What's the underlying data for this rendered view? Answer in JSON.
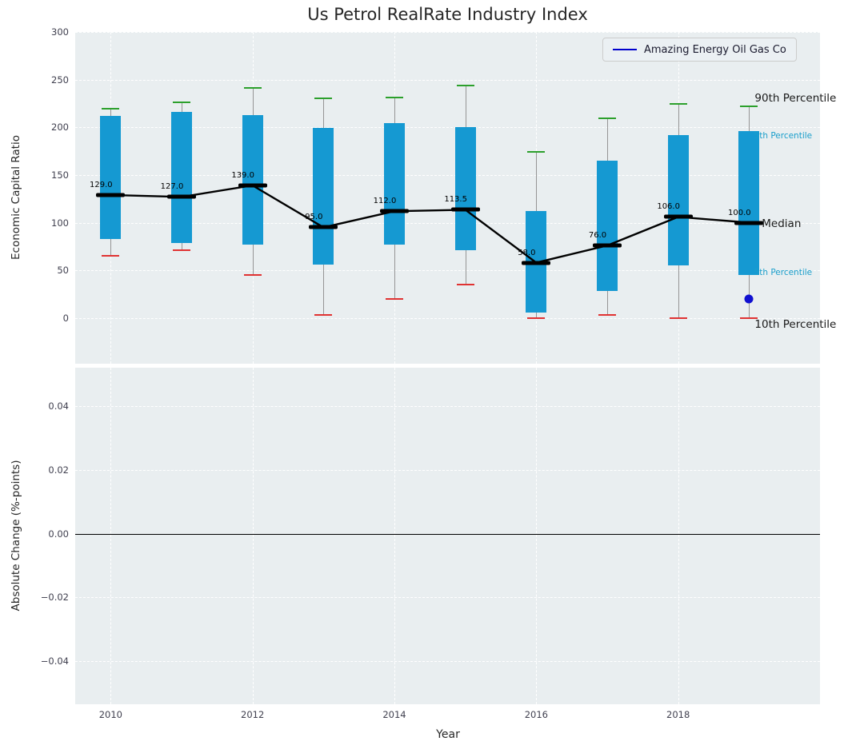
{
  "chart_data": [
    {
      "type": "boxplot",
      "title": "Us Petrol RealRate Industry Index",
      "xlabel": "Year",
      "ylabel": "Economic Capital Ratio",
      "x": [
        2010,
        2011,
        2012,
        2013,
        2014,
        2015,
        2016,
        2017,
        2018,
        2019
      ],
      "xlim": [
        2009.5,
        2020.0
      ],
      "ylim": [
        -48,
        300
      ],
      "yticks": [
        0,
        50,
        100,
        150,
        200,
        250,
        300
      ],
      "xticks": [
        2010,
        2012,
        2014,
        2016,
        2018
      ],
      "grid": true,
      "legend": {
        "position": "upper right",
        "entries": [
          {
            "label": "Amazing Energy Oil Gas Co",
            "color": "#0000cd"
          }
        ]
      },
      "series": {
        "median": [
          129.0,
          127.0,
          139.0,
          95.0,
          112.0,
          113.5,
          58.0,
          76.0,
          106.0,
          100.0
        ],
        "median_labels": [
          "129.0",
          "127.0",
          "139.0",
          "95.0",
          "112.0",
          "113.5",
          "58.0",
          "76.0",
          "106.0",
          "100.0"
        ],
        "q25": [
          83,
          79,
          77,
          56,
          77,
          71,
          6,
          28,
          55,
          45
        ],
        "q75": [
          212,
          216,
          213,
          199,
          204,
          200,
          112,
          165,
          192,
          196
        ],
        "p10": [
          66,
          72,
          46,
          4,
          21,
          36,
          1,
          4,
          1,
          1
        ],
        "p90": [
          220,
          227,
          242,
          231,
          232,
          245,
          175,
          210,
          225,
          223
        ]
      },
      "point": {
        "x": 2019,
        "y": 20,
        "color": "#0f0fd0",
        "label": "Amazing Energy Oil Gas Co"
      },
      "colors": {
        "box": "#1599d2",
        "cap_top": "#2ca02c",
        "cap_bottom": "#e03232",
        "whisker": "#959595",
        "median": "#000000"
      },
      "annotations": [
        {
          "text": "90th Percentile",
          "x": 2019.08,
          "value": 230,
          "color": "#1a1a1a",
          "size": 13.5
        },
        {
          "text": "5th Percentile",
          "x": 2019.07,
          "value": 191,
          "color": "#1a9ecb",
          "size": 10.5
        },
        {
          "text": "Median",
          "x": 2019.18,
          "value": 99,
          "color": "#1a1a1a",
          "size": 13.5
        },
        {
          "text": "5th Percentile",
          "x": 2019.07,
          "value": 48,
          "color": "#1a9ecb",
          "size": 10.5
        },
        {
          "text": "10th Percentile",
          "x": 2019.08,
          "value": -7,
          "color": "#1a1a1a",
          "size": 13.5
        }
      ]
    },
    {
      "type": "line",
      "ylabel": "Absolute Change (%-points)",
      "ylim": [
        -0.0535,
        0.052
      ],
      "yticks": [
        "0.04",
        "0.02",
        "0.00",
        "−0.02",
        "−0.04"
      ],
      "ytick_values": [
        0.04,
        0.02,
        0.0,
        -0.02,
        -0.04
      ],
      "zero_line": 0.0,
      "series": []
    }
  ]
}
